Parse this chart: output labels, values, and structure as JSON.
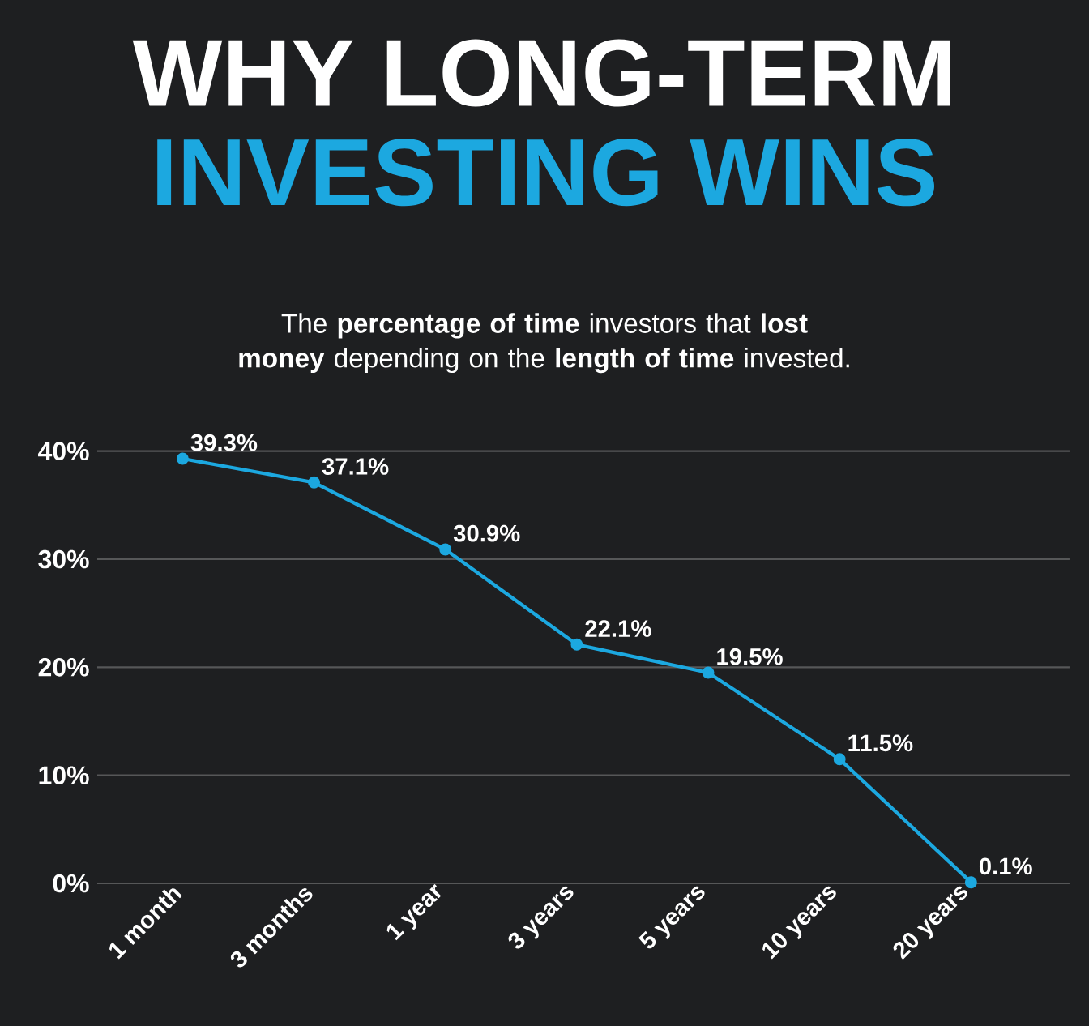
{
  "chart_data": {
    "type": "line",
    "title": "WHY LONG-TERM",
    "subtitle": "INVESTING WINS",
    "annotations": [
      "The **percentage of time** investors that **lost money** depending on the **length of time** invested."
    ],
    "categories": [
      "1 month",
      "3 months",
      "1 year",
      "3 years",
      "5 years",
      "10 years",
      "20 years"
    ],
    "series": [
      {
        "color": "#1ca8e0",
        "values": [
          39.3,
          37.1,
          30.9,
          22.1,
          19.5,
          11.5,
          0.1
        ],
        "value_labels": [
          "39.3%",
          "37.1%",
          "30.9%",
          "22.1%",
          "19.5%",
          "11.5%",
          "0.1%"
        ]
      }
    ],
    "ylim": [
      0,
      40
    ],
    "yticks": [
      {
        "value": 0,
        "label": "0%"
      },
      {
        "value": 10,
        "label": "10%"
      },
      {
        "value": 20,
        "label": "20%"
      },
      {
        "value": 30,
        "label": "30%"
      },
      {
        "value": 40,
        "label": "40%"
      }
    ],
    "grid": "y",
    "marker": "circle",
    "line_style": "solid"
  }
}
